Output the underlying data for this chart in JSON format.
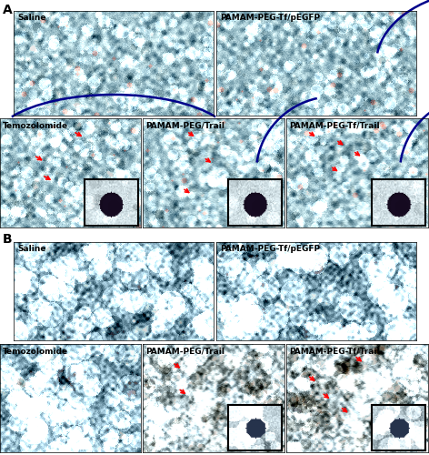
{
  "figure_label_A": "A",
  "figure_label_B": "B",
  "panel_labels": {
    "A_row1": [
      "Saline",
      "PAMAM-PEG-Tf/pEGFP"
    ],
    "A_row2": [
      "Temozolomide",
      "PAMAM-PEG/Trail",
      "PAMAM-PEG-Tf/Trail"
    ],
    "B_row1": [
      "Saline",
      "PAMAM-PEG-Tf/pEGFP"
    ],
    "B_row2": [
      "Temozolomide",
      "PAMAM-PEG/Trail",
      "PAMAM-PEG-Tf/Trail"
    ]
  },
  "bg_color": "#ffffff",
  "label_font_size": 6.5,
  "section_label_font_size": 10,
  "tissue_base_color_A": [
    0.62,
    0.76,
    0.8
  ],
  "tissue_base_color_B1": [
    0.55,
    0.7,
    0.76
  ],
  "tissue_base_color_B2": [
    0.72,
    0.8,
    0.82
  ],
  "arrow_color": "red",
  "line_color": "#00008B",
  "inset_border_color": "black"
}
